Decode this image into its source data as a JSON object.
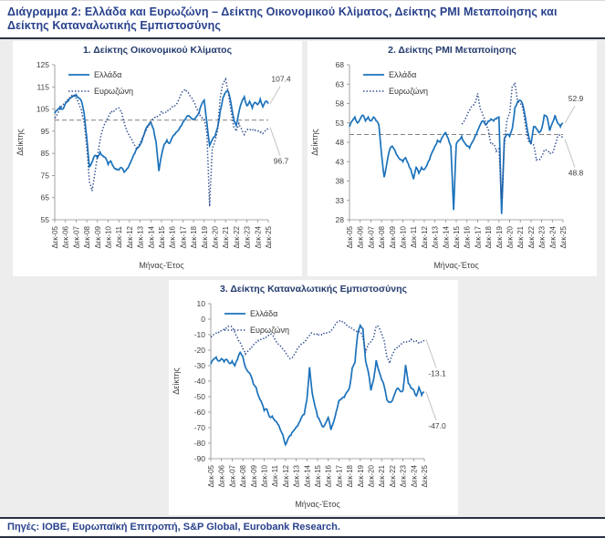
{
  "page": {
    "title": "Διάγραμμα 2: Ελλάδα και Ευρωζώνη – Δείκτης Οικονομικού Κλίματος, Δείκτης PMI Μεταποίησης και Δείκτης Καταναλωτικής Εμπιστοσύνης",
    "source": "Πηγές: ΙΟΒΕ, Ευρωπαϊκή Επιτροπή, S&P Global, Eurobank Research."
  },
  "colors": {
    "greece_line": "#1b72bb",
    "eurozone_line": "#2e4d8f",
    "refline": "#808080",
    "axis": "#8c8c8c",
    "axis_text": "#3f3f3f",
    "leader": "#c4c4c4",
    "title_text": "#253c6e",
    "page_bg": "#ededed",
    "panel_bg": "#ffffff"
  },
  "x_axis": {
    "label": "Μήνας-Έτος",
    "tick_labels": [
      "Δεκ-05",
      "Δεκ-06",
      "Δεκ-07",
      "Δεκ-08",
      "Δεκ-09",
      "Δεκ-10",
      "Δεκ-11",
      "Δεκ-12",
      "Δεκ-13",
      "Δεκ-14",
      "Δεκ-15",
      "Δεκ-16",
      "Δεκ-17",
      "Δεκ-18",
      "Δεκ-19",
      "Δεκ-20",
      "Δεκ-21",
      "Δεκ-22",
      "Δεκ-23",
      "Δεκ-24",
      "Δεκ-25"
    ],
    "note": "monthly series Dec-2005 to Dec-2025; t=0 is Δεκ-05, t=20 is Δεκ-25 (values sampled quarterly)"
  },
  "y_axis_label": "Δείκτης",
  "legend": [
    "Ελλάδα",
    "Ευρωζώνη"
  ],
  "chart_data": [
    {
      "type": "line",
      "title": "1. Δείκτης Οικονομικού Κλίματος",
      "xlabel": "Μήνας-Έτος",
      "ylabel": "Δείκτης",
      "xlim": [
        0,
        20
      ],
      "ylim": [
        55,
        125
      ],
      "ytick_step": 10,
      "refline": 100,
      "grid": false,
      "legend_position": "top-left",
      "series": [
        {
          "name": "Ελλάδα",
          "style": "solid",
          "end_label": "107.4",
          "end_label_side": "above",
          "start": 0,
          "step": 0.25,
          "values": [
            103,
            104.5,
            106,
            105,
            107.5,
            108.5,
            110,
            111,
            111.5,
            110,
            108.5,
            103,
            92,
            79,
            81,
            84,
            83,
            85.5,
            84,
            83,
            80,
            81.5,
            79,
            78,
            77.5,
            78.5,
            76.5,
            78,
            80,
            82.5,
            85,
            87.5,
            89,
            92,
            95.5,
            97.5,
            99,
            96,
            90,
            77,
            84,
            89,
            91,
            89.5,
            92,
            93.5,
            95,
            97,
            99,
            100.5,
            102,
            101,
            100.5,
            101.5,
            103,
            107,
            109,
            99,
            88.5,
            91,
            92.5,
            96.5,
            104,
            110,
            112.5,
            113,
            108,
            101,
            97.5,
            103.5,
            108,
            110.5,
            106.5,
            108.5,
            105.5,
            108,
            107,
            109.5,
            106,
            108.5,
            107.4
          ]
        },
        {
          "name": "Ευρωζώνη",
          "style": "dotted",
          "end_label": "96.7",
          "end_label_side": "below",
          "start": 0,
          "step": 0.25,
          "values": [
            101,
            103,
            105,
            106.5,
            108,
            109.5,
            111,
            111.5,
            110,
            107.5,
            104.5,
            99,
            88,
            72,
            68,
            76,
            84,
            91,
            96,
            99,
            101.5,
            104,
            103.5,
            105,
            105.5,
            104,
            99,
            95,
            92.5,
            91,
            88.5,
            87,
            89.5,
            92,
            95,
            97.5,
            99.5,
            100.5,
            101,
            102,
            104,
            103,
            103.5,
            104.5,
            106,
            106.5,
            108,
            110.5,
            113,
            114,
            112.5,
            110.5,
            108.5,
            105.5,
            103.5,
            101.5,
            100.5,
            94,
            61,
            87.5,
            90.5,
            95.5,
            110,
            116.5,
            118.5,
            113,
            104.5,
            97,
            95,
            98.5,
            96,
            93.5,
            95.5,
            95.5,
            96,
            95.5,
            95,
            94.5,
            94,
            95.5,
            96.7
          ]
        }
      ]
    },
    {
      "type": "line",
      "title": "2. Δείκτης PMI Μεταποίησης",
      "xlabel": "Μήνας-Έτος",
      "ylabel": "Δείκτης",
      "xlim": [
        0,
        20
      ],
      "ylim": [
        28,
        68
      ],
      "ytick_step": 5,
      "refline": 50,
      "grid": false,
      "legend_position": "top-left",
      "series": [
        {
          "name": "Ελλάδα",
          "style": "solid",
          "end_label": "52.9",
          "end_label_side": "above",
          "start": 0,
          "step": 0.25,
          "values": [
            52,
            53.5,
            54.5,
            53,
            54,
            55,
            53.5,
            54.5,
            53.5,
            54.5,
            53.5,
            52.5,
            45,
            39,
            42.5,
            46,
            47,
            46,
            44.5,
            43.5,
            43,
            44,
            42.5,
            41,
            38.5,
            41.5,
            40,
            41.5,
            41,
            42,
            43.5,
            45.5,
            47,
            48.5,
            48,
            49.5,
            50.5,
            49,
            47,
            30.5,
            47.5,
            48.5,
            49.5,
            48,
            47,
            46.5,
            48,
            49.5,
            51,
            52.5,
            53.5,
            52.5,
            53.5,
            54,
            53.5,
            54,
            54.5,
            29.5,
            49,
            50,
            49.5,
            51.5,
            57,
            58.5,
            58.8,
            57.5,
            54,
            50,
            47.5,
            52,
            51.5,
            50.5,
            51.5,
            55,
            54.5,
            51,
            53,
            55,
            53,
            52,
            52.9
          ]
        },
        {
          "name": "Ευρωζώνη",
          "style": "dotted",
          "end_label": "48.8",
          "end_label_side": "below",
          "start": 10.5,
          "step": 0.25,
          "values": [
            52.8,
            53.5,
            54.9,
            56.2,
            57.4,
            58.1,
            60.6,
            56.6,
            54.9,
            53.2,
            51.4,
            47.5,
            47.6,
            45.7,
            46.3,
            33.4,
            47.4,
            53.7,
            55.2,
            62.5,
            63.4,
            58.6,
            58,
            56.5,
            52.1,
            48.4,
            47.8,
            47.3,
            43.4,
            43.4,
            44.4,
            46.1,
            45.8,
            45,
            45.1,
            47.3,
            49.5,
            49.8,
            48.8
          ]
        }
      ]
    },
    {
      "type": "line",
      "title": "3. Δείκτης Καταναλωτικής Εμπιστοσύνης",
      "xlabel": "Μήνας-Έτος",
      "ylabel": "Δείκτης",
      "xlim": [
        0,
        20
      ],
      "ylim": [
        -90,
        10
      ],
      "ytick_step": 10,
      "refline": null,
      "grid": false,
      "legend_position": "top-left",
      "series": [
        {
          "name": "Ελλάδα",
          "style": "solid",
          "end_label": "-47.0",
          "end_label_side": "below",
          "start": 0,
          "step": 0.25,
          "values": [
            -29,
            -26,
            -24.5,
            -27,
            -25.5,
            -27.5,
            -26,
            -28.5,
            -27,
            -30,
            -26,
            -21.5,
            -24,
            -31,
            -34,
            -36.5,
            -42,
            -44,
            -50,
            -53.5,
            -59,
            -58,
            -63,
            -62.5,
            -65.5,
            -67.5,
            -71,
            -74.5,
            -81,
            -77,
            -75,
            -72,
            -69.5,
            -67,
            -63.5,
            -61.5,
            -52,
            -31,
            -47.5,
            -56,
            -63,
            -66,
            -69.5,
            -67,
            -63.5,
            -71.5,
            -66.5,
            -59.5,
            -52.5,
            -51.5,
            -50.5,
            -47,
            -44,
            -31.5,
            -28,
            -10,
            -4,
            -6,
            -27,
            -34,
            -46,
            -39,
            -26.5,
            -33.5,
            -39,
            -43.5,
            -52,
            -53.5,
            -52.5,
            -48,
            -44.5,
            -46.5,
            -46,
            -29.5,
            -41.5,
            -44.5,
            -45.5,
            -49.5,
            -44,
            -49,
            -47.0
          ]
        },
        {
          "name": "Ευρωζώνη",
          "style": "dotted",
          "end_label": "-13.1",
          "end_label_side": "below",
          "start": 0,
          "step": 0.25,
          "values": [
            -11,
            -10,
            -9,
            -8.5,
            -7.5,
            -6.5,
            -5,
            -4.5,
            -5.5,
            -8.5,
            -12,
            -15,
            -19,
            -22.5,
            -20.5,
            -18,
            -16.5,
            -15,
            -14,
            -13,
            -12,
            -11,
            -10.5,
            -10,
            -13,
            -15,
            -17,
            -19.5,
            -22,
            -24,
            -25.5,
            -23.5,
            -21,
            -18,
            -16,
            -14.5,
            -12.5,
            -10.5,
            -9,
            -10,
            -9,
            -10.5,
            -10,
            -9.5,
            -8.5,
            -7,
            -5.5,
            -3,
            -1.5,
            -1,
            -2,
            -4,
            -5.5,
            -6.5,
            -7,
            -7.5,
            -8,
            -12,
            -21.5,
            -16,
            -14.5,
            -12,
            -4.5,
            -5.5,
            -9,
            -14,
            -24.5,
            -28.5,
            -23,
            -19.5,
            -17.5,
            -17,
            -15.5,
            -15,
            -14,
            -13,
            -14.5,
            -14,
            -15.5,
            -14.5,
            -13.1
          ]
        }
      ]
    }
  ]
}
